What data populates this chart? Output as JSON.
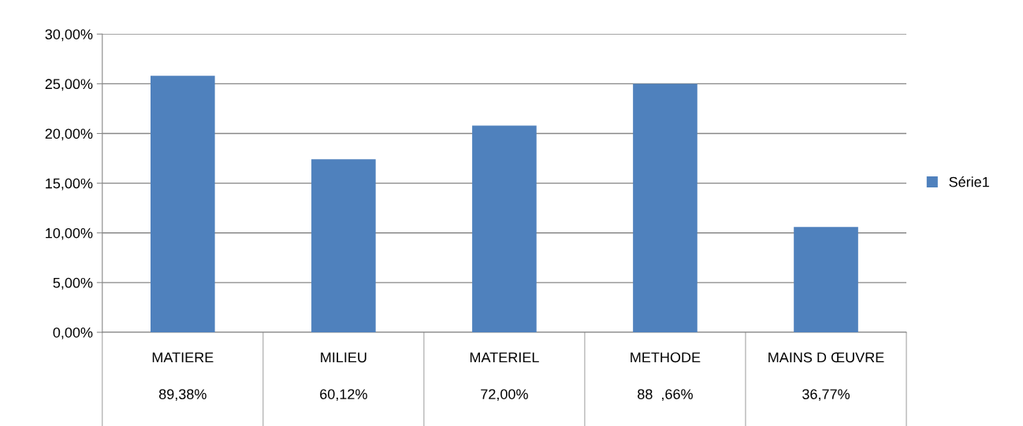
{
  "chart_data": {
    "type": "bar",
    "categories": [
      "MATIERE\n\n89,38%",
      "MILIEU\n\n60,12%",
      "MATERIEL\n\n72,00%",
      "METHODE\n\n88  ,66%",
      "MAINS D ŒUVRE\n\n36,77%"
    ],
    "series": [
      {
        "name": "Série1",
        "color": "#4f81bd",
        "values": [
          25.8,
          17.4,
          20.8,
          25.0,
          10.6
        ]
      }
    ],
    "ylim": [
      0,
      30
    ],
    "yticks": [
      {
        "value": 0,
        "label": "0,00%"
      },
      {
        "value": 5,
        "label": "5,00%"
      },
      {
        "value": 10,
        "label": "10,00%"
      },
      {
        "value": 15,
        "label": "15,00%"
      },
      {
        "value": 20,
        "label": "20,00%"
      },
      {
        "value": 25,
        "label": "25,00%"
      },
      {
        "value": 30,
        "label": "30,00%"
      }
    ],
    "grid": "y",
    "legend": "right"
  }
}
